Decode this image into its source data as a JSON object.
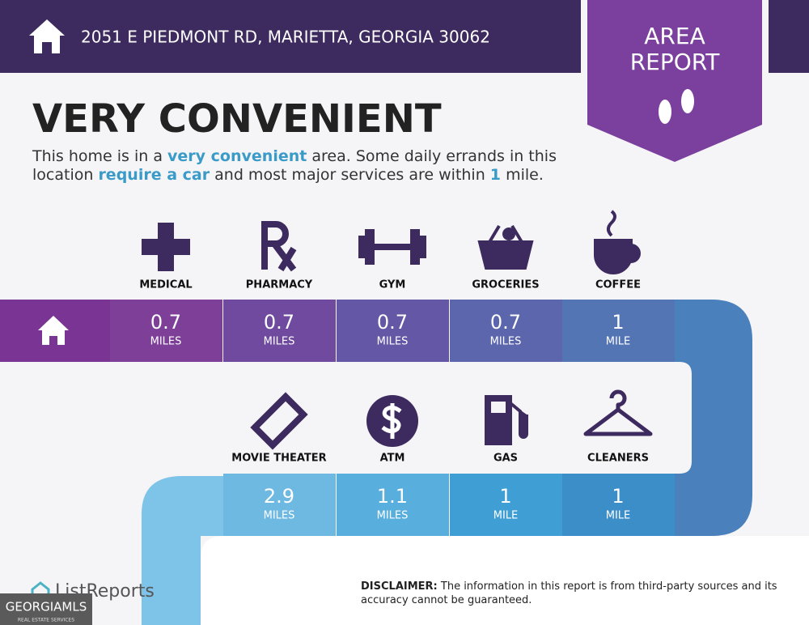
{
  "header": {
    "address": "2051 E PIEDMONT RD, MARIETTA, GEORGIA 30062"
  },
  "badge": {
    "line1": "AREA",
    "line2": "REPORT"
  },
  "headline": "VERY CONVENIENT",
  "description": [
    "This home is in a ",
    "very convenient",
    " area. Some daily errands in this location ",
    "require a car",
    " and most major services are within ",
    "1",
    " mile."
  ],
  "row1": [
    {
      "label": "MEDICAL",
      "distance": 0.7,
      "unit": "MILES"
    },
    {
      "label": "PHARMACY",
      "distance": 0.7,
      "unit": "MILES"
    },
    {
      "label": "GYM",
      "distance": 0.7,
      "unit": "MILES"
    },
    {
      "label": "GROCERIES",
      "distance": 0.7,
      "unit": "MILES"
    },
    {
      "label": "COFFEE",
      "distance": 1,
      "unit": "MILE"
    }
  ],
  "row2": [
    {
      "label": "MOVIE THEATER",
      "distance": 2.9,
      "unit": "MILES"
    },
    {
      "label": "ATM",
      "distance": 1.1,
      "unit": "MILES"
    },
    {
      "label": "GAS",
      "distance": 1,
      "unit": "MILE"
    },
    {
      "label": "CLEANERS",
      "distance": 1,
      "unit": "MILE"
    }
  ],
  "footer": {
    "brand": "ListReports",
    "disclaimer_label": "DISCLAIMER:",
    "disclaimer": " The information in this report is from third-party sources and its accuracy cannot be guaranteed.",
    "mls": "GEORGIAMLS",
    "mls_sub": "REAL ESTATE SERVICES"
  }
}
